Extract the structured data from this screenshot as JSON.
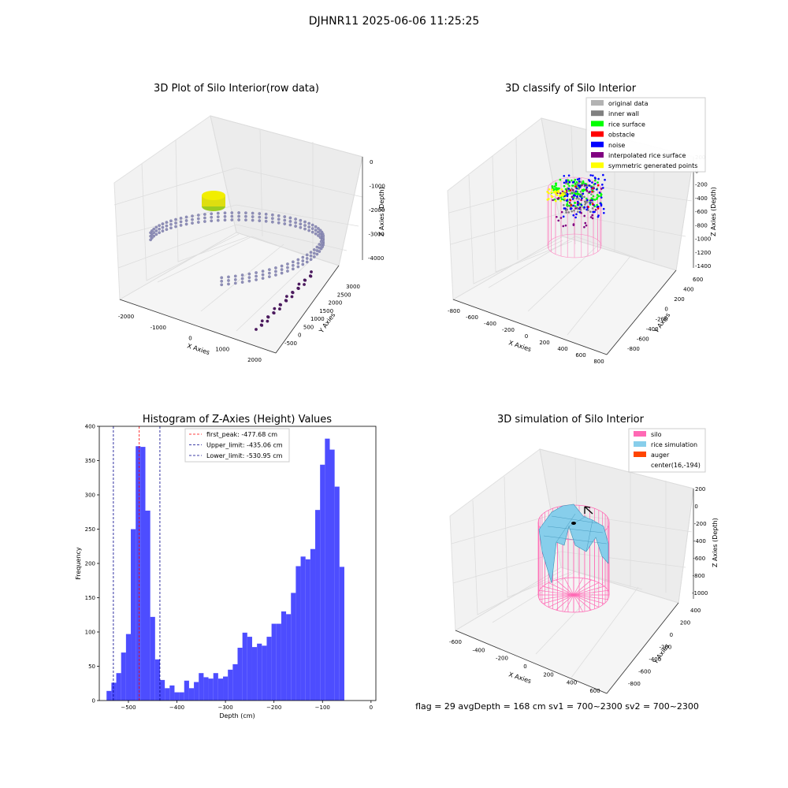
{
  "figure": {
    "suptitle": "DJHNR11 2025-06-06 11:25:25",
    "status_text": "flag = 29   avgDepth = 168 cm   sv1 = 700~2300   sv2 = 700~2300"
  },
  "chart_data": [
    {
      "type": "scatter3d",
      "title": "3D Plot of Silo Interior(row data)",
      "xlabel": "X Axies",
      "ylabel": "Y Axies",
      "zlabel": "Z Axies (Depth)",
      "xticks": [
        "-2000",
        "-1000",
        "0",
        "1000",
        "2000"
      ],
      "yticks": [
        "-500",
        "0",
        "500",
        "1000",
        "1500",
        "2000",
        "2500",
        "3000"
      ],
      "zticks": [
        "0",
        "-1000",
        "-2000",
        "-3000",
        "-4000"
      ],
      "colors": {
        "points": "#8f8fb8",
        "cluster": "#e5e500",
        "dark": "#4b1a5e"
      }
    },
    {
      "type": "scatter3d",
      "title": "3D classify of Silo Interior",
      "xlabel": "X Axies",
      "ylabel": "Y Axies",
      "zlabel": "Z Axies (Depth)",
      "xticks": [
        "-800",
        "-600",
        "-400",
        "-200",
        "0",
        "200",
        "400",
        "600",
        "800"
      ],
      "yticks": [
        "-800",
        "-600",
        "-400",
        "-200",
        "0",
        "200",
        "400",
        "600"
      ],
      "zticks": [
        "200",
        "0",
        "-200",
        "-400",
        "-600",
        "-800",
        "-1000",
        "-1200",
        "-1400"
      ],
      "legend": [
        {
          "label": "original data",
          "color": "#b3b3b3"
        },
        {
          "label": "inner wall",
          "color": "#808080"
        },
        {
          "label": "rice surface",
          "color": "#00ff00"
        },
        {
          "label": "obstacle",
          "color": "#ff0000"
        },
        {
          "label": "noise",
          "color": "#0000ff"
        },
        {
          "label": "interpolated rice surface",
          "color": "#800080"
        },
        {
          "label": "symmetric generated points",
          "color": "#ffff00"
        }
      ],
      "legend_position": "top-right"
    },
    {
      "type": "histogram",
      "title": "Histogram of Z-Axies (Height) Values",
      "xlabel": "Depth (cm)",
      "ylabel": "Frequency",
      "xlim": [
        -560,
        10
      ],
      "ylim": [
        0,
        400
      ],
      "xticks": [
        -500,
        -400,
        -300,
        -200,
        -100,
        0
      ],
      "yticks": [
        0,
        50,
        100,
        150,
        200,
        250,
        300,
        350,
        400
      ],
      "bin_start": -545,
      "bin_width": 10,
      "counts": [
        14,
        26,
        40,
        70,
        97,
        250,
        371,
        370,
        277,
        122,
        60,
        30,
        18,
        22,
        12,
        12,
        29,
        18,
        27,
        40,
        34,
        32,
        40,
        32,
        35,
        45,
        53,
        77,
        99,
        93,
        78,
        83,
        80,
        93,
        112,
        112,
        130,
        126,
        157,
        196,
        210,
        206,
        221,
        278,
        344,
        382,
        366,
        312,
        195
      ],
      "bar_color": "#4d4dff",
      "lines": [
        {
          "label": "first_peak: -477.68 cm",
          "x": -477.68,
          "color": "#ff0000"
        },
        {
          "label": "Upper_limit: -435.06 cm",
          "x": -435.06,
          "color": "#00008b"
        },
        {
          "label": "Lower_limit: -530.95 cm",
          "x": -530.95,
          "color": "#00008b"
        }
      ],
      "legend_position": "top-center"
    },
    {
      "type": "surface3d",
      "title": "3D simulation of Silo Interior",
      "xlabel": "X Axies",
      "ylabel": "Y Axies",
      "zlabel": "Z Axies (Depth)",
      "xticks": [
        "-600",
        "-400",
        "-200",
        "0",
        "200",
        "400",
        "600"
      ],
      "yticks": [
        "-800",
        "-600",
        "-400",
        "-200",
        "0",
        "200",
        "400"
      ],
      "zticks": [
        "200",
        "0",
        "-200",
        "-400",
        "-600",
        "-800",
        "-1000"
      ],
      "legend": [
        {
          "label": "silo",
          "color": "#ff69b4"
        },
        {
          "label": "rice simulation",
          "color": "#87ceeb"
        },
        {
          "label": "auger",
          "color": "#ff4500"
        },
        {
          "label": "center(16,-194)",
          "color": ""
        }
      ],
      "legend_position": "top-right"
    }
  ]
}
